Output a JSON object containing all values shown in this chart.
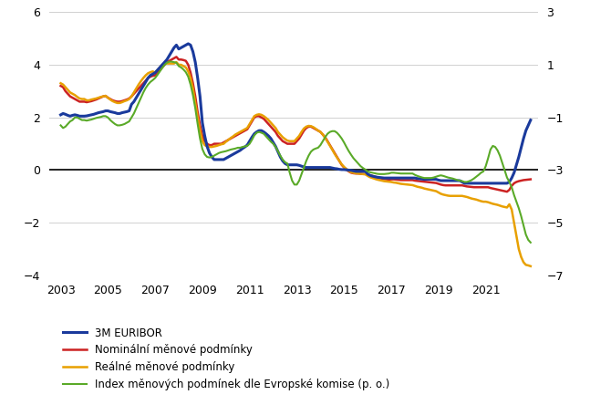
{
  "legend": [
    "3M EURIBOR",
    "Nominální měnové podmínky",
    "Reálné měnové podmínky",
    "Index měnových podmínek dle Evropské komise (p. o.)"
  ],
  "colors": [
    "#1a3a9c",
    "#cc2222",
    "#e8a000",
    "#5aaa28"
  ],
  "linewidths": [
    2.2,
    1.8,
    1.8,
    1.5
  ],
  "ylim_left": [
    -4,
    6
  ],
  "ylim_right": [
    -7,
    3
  ],
  "yticks_left": [
    -4,
    -2,
    0,
    2,
    4,
    6
  ],
  "yticks_right": [
    -7,
    -5,
    -3,
    -1,
    1,
    3
  ],
  "xticks": [
    2003,
    2005,
    2007,
    2009,
    2011,
    2013,
    2015,
    2017,
    2019,
    2021
  ],
  "xlim": [
    2002.5,
    2023.2
  ],
  "years": [
    2003.0,
    2003.1,
    2003.2,
    2003.3,
    2003.4,
    2003.5,
    2003.6,
    2003.7,
    2003.8,
    2003.9,
    2004.0,
    2004.1,
    2004.2,
    2004.3,
    2004.4,
    2004.5,
    2004.6,
    2004.7,
    2004.8,
    2004.9,
    2005.0,
    2005.1,
    2005.2,
    2005.3,
    2005.4,
    2005.5,
    2005.6,
    2005.7,
    2005.8,
    2005.9,
    2006.0,
    2006.1,
    2006.2,
    2006.3,
    2006.4,
    2006.5,
    2006.6,
    2006.7,
    2006.8,
    2006.9,
    2007.0,
    2007.1,
    2007.2,
    2007.3,
    2007.4,
    2007.5,
    2007.6,
    2007.7,
    2007.8,
    2007.9,
    2008.0,
    2008.1,
    2008.2,
    2008.3,
    2008.4,
    2008.5,
    2008.6,
    2008.7,
    2008.8,
    2008.9,
    2009.0,
    2009.1,
    2009.2,
    2009.3,
    2009.4,
    2009.5,
    2009.6,
    2009.7,
    2009.8,
    2009.9,
    2010.0,
    2010.1,
    2010.2,
    2010.3,
    2010.4,
    2010.5,
    2010.6,
    2010.7,
    2010.8,
    2010.9,
    2011.0,
    2011.1,
    2011.2,
    2011.3,
    2011.4,
    2011.5,
    2011.6,
    2011.7,
    2011.8,
    2011.9,
    2012.0,
    2012.1,
    2012.2,
    2012.3,
    2012.4,
    2012.5,
    2012.6,
    2012.7,
    2012.8,
    2012.9,
    2013.0,
    2013.1,
    2013.2,
    2013.3,
    2013.4,
    2013.5,
    2013.6,
    2013.7,
    2013.8,
    2013.9,
    2014.0,
    2014.1,
    2014.2,
    2014.3,
    2014.4,
    2014.5,
    2014.6,
    2014.7,
    2014.8,
    2014.9,
    2015.0,
    2015.1,
    2015.2,
    2015.3,
    2015.4,
    2015.5,
    2015.6,
    2015.7,
    2015.8,
    2015.9,
    2016.0,
    2016.1,
    2016.2,
    2016.3,
    2016.4,
    2016.5,
    2016.6,
    2016.7,
    2016.8,
    2016.9,
    2017.0,
    2017.1,
    2017.2,
    2017.3,
    2017.4,
    2017.5,
    2017.6,
    2017.7,
    2017.8,
    2017.9,
    2018.0,
    2018.1,
    2018.2,
    2018.3,
    2018.4,
    2018.5,
    2018.6,
    2018.7,
    2018.8,
    2018.9,
    2019.0,
    2019.1,
    2019.2,
    2019.3,
    2019.4,
    2019.5,
    2019.6,
    2019.7,
    2019.8,
    2019.9,
    2020.0,
    2020.1,
    2020.2,
    2020.3,
    2020.4,
    2020.5,
    2020.6,
    2020.7,
    2020.8,
    2020.9,
    2021.0,
    2021.1,
    2021.2,
    2021.3,
    2021.4,
    2021.5,
    2021.6,
    2021.7,
    2021.8,
    2021.9,
    2022.0,
    2022.1,
    2022.2,
    2022.3,
    2022.4,
    2022.5,
    2022.6,
    2022.7,
    2022.8,
    2022.9
  ],
  "euribor": [
    2.1,
    2.15,
    2.12,
    2.08,
    2.05,
    2.08,
    2.1,
    2.08,
    2.05,
    2.05,
    2.05,
    2.06,
    2.08,
    2.1,
    2.12,
    2.15,
    2.18,
    2.2,
    2.22,
    2.25,
    2.25,
    2.22,
    2.2,
    2.18,
    2.15,
    2.15,
    2.18,
    2.2,
    2.22,
    2.25,
    2.5,
    2.6,
    2.75,
    2.9,
    3.05,
    3.2,
    3.35,
    3.5,
    3.6,
    3.65,
    3.7,
    3.8,
    3.9,
    4.0,
    4.1,
    4.2,
    4.35,
    4.5,
    4.65,
    4.75,
    4.6,
    4.65,
    4.7,
    4.75,
    4.8,
    4.75,
    4.5,
    4.1,
    3.5,
    2.8,
    1.8,
    1.3,
    0.9,
    0.65,
    0.5,
    0.4,
    0.4,
    0.4,
    0.4,
    0.4,
    0.45,
    0.5,
    0.55,
    0.6,
    0.65,
    0.7,
    0.75,
    0.82,
    0.88,
    0.95,
    1.1,
    1.25,
    1.38,
    1.45,
    1.5,
    1.5,
    1.45,
    1.38,
    1.3,
    1.2,
    1.05,
    0.9,
    0.7,
    0.5,
    0.35,
    0.25,
    0.2,
    0.2,
    0.2,
    0.2,
    0.2,
    0.18,
    0.15,
    0.12,
    0.1,
    0.1,
    0.1,
    0.1,
    0.1,
    0.1,
    0.1,
    0.1,
    0.1,
    0.1,
    0.1,
    0.08,
    0.06,
    0.05,
    0.03,
    0.02,
    0.02,
    0.01,
    0.0,
    -0.01,
    -0.03,
    -0.05,
    -0.05,
    -0.05,
    -0.05,
    -0.05,
    -0.15,
    -0.2,
    -0.23,
    -0.25,
    -0.27,
    -0.28,
    -0.29,
    -0.3,
    -0.3,
    -0.3,
    -0.3,
    -0.3,
    -0.3,
    -0.3,
    -0.3,
    -0.3,
    -0.3,
    -0.3,
    -0.3,
    -0.3,
    -0.3,
    -0.32,
    -0.33,
    -0.34,
    -0.35,
    -0.35,
    -0.35,
    -0.35,
    -0.35,
    -0.35,
    -0.38,
    -0.4,
    -0.4,
    -0.4,
    -0.4,
    -0.4,
    -0.4,
    -0.4,
    -0.4,
    -0.4,
    -0.45,
    -0.5,
    -0.5,
    -0.5,
    -0.5,
    -0.5,
    -0.5,
    -0.5,
    -0.5,
    -0.5,
    -0.5,
    -0.5,
    -0.5,
    -0.5,
    -0.5,
    -0.5,
    -0.5,
    -0.5,
    -0.5,
    -0.5,
    -0.45,
    -0.3,
    -0.1,
    0.2,
    0.5,
    0.85,
    1.2,
    1.5,
    1.7,
    1.9
  ],
  "nominal": [
    3.2,
    3.15,
    3.0,
    2.9,
    2.8,
    2.75,
    2.7,
    2.65,
    2.6,
    2.6,
    2.6,
    2.58,
    2.6,
    2.62,
    2.65,
    2.68,
    2.72,
    2.76,
    2.8,
    2.82,
    2.75,
    2.7,
    2.65,
    2.62,
    2.6,
    2.6,
    2.62,
    2.65,
    2.68,
    2.72,
    2.8,
    2.9,
    3.0,
    3.1,
    3.2,
    3.3,
    3.4,
    3.5,
    3.55,
    3.58,
    3.6,
    3.7,
    3.8,
    3.9,
    4.0,
    4.1,
    4.15,
    4.2,
    4.25,
    4.3,
    4.2,
    4.2,
    4.18,
    4.15,
    4.0,
    3.7,
    3.3,
    2.8,
    2.2,
    1.7,
    1.3,
    1.1,
    1.0,
    0.95,
    0.95,
    1.0,
    1.0,
    1.0,
    1.0,
    1.05,
    1.1,
    1.15,
    1.2,
    1.25,
    1.3,
    1.35,
    1.4,
    1.45,
    1.5,
    1.55,
    1.7,
    1.85,
    2.0,
    2.05,
    2.05,
    2.0,
    1.95,
    1.85,
    1.75,
    1.65,
    1.55,
    1.45,
    1.3,
    1.2,
    1.1,
    1.05,
    1.0,
    1.0,
    1.0,
    1.0,
    1.1,
    1.2,
    1.35,
    1.5,
    1.6,
    1.65,
    1.65,
    1.6,
    1.55,
    1.5,
    1.45,
    1.35,
    1.25,
    1.1,
    0.95,
    0.8,
    0.65,
    0.5,
    0.35,
    0.2,
    0.1,
    0.02,
    -0.05,
    -0.1,
    -0.12,
    -0.13,
    -0.13,
    -0.14,
    -0.15,
    -0.15,
    -0.18,
    -0.2,
    -0.22,
    -0.25,
    -0.27,
    -0.3,
    -0.32,
    -0.34,
    -0.35,
    -0.36,
    -0.35,
    -0.35,
    -0.36,
    -0.37,
    -0.38,
    -0.38,
    -0.38,
    -0.38,
    -0.38,
    -0.38,
    -0.4,
    -0.41,
    -0.42,
    -0.43,
    -0.44,
    -0.45,
    -0.46,
    -0.47,
    -0.48,
    -0.49,
    -0.52,
    -0.55,
    -0.57,
    -0.58,
    -0.58,
    -0.58,
    -0.58,
    -0.58,
    -0.58,
    -0.58,
    -0.58,
    -0.6,
    -0.62,
    -0.63,
    -0.64,
    -0.65,
    -0.65,
    -0.65,
    -0.65,
    -0.65,
    -0.65,
    -0.65,
    -0.68,
    -0.7,
    -0.72,
    -0.74,
    -0.76,
    -0.78,
    -0.8,
    -0.82,
    -0.75,
    -0.6,
    -0.5,
    -0.45,
    -0.42,
    -0.4,
    -0.38,
    -0.37,
    -0.36,
    -0.35
  ],
  "real": [
    3.3,
    3.25,
    3.15,
    3.05,
    2.95,
    2.9,
    2.85,
    2.78,
    2.72,
    2.7,
    2.7,
    2.65,
    2.65,
    2.68,
    2.7,
    2.72,
    2.75,
    2.78,
    2.8,
    2.82,
    2.75,
    2.68,
    2.62,
    2.58,
    2.55,
    2.55,
    2.58,
    2.62,
    2.65,
    2.7,
    2.8,
    2.95,
    3.1,
    3.25,
    3.38,
    3.5,
    3.6,
    3.68,
    3.72,
    3.75,
    3.7,
    3.8,
    3.9,
    4.0,
    4.05,
    4.05,
    4.05,
    4.05,
    4.05,
    4.1,
    4.0,
    4.0,
    3.95,
    3.9,
    3.75,
    3.5,
    3.1,
    2.55,
    2.0,
    1.5,
    1.1,
    0.95,
    0.9,
    0.88,
    0.88,
    0.9,
    0.92,
    0.95,
    0.98,
    1.0,
    1.08,
    1.15,
    1.22,
    1.28,
    1.35,
    1.4,
    1.45,
    1.5,
    1.55,
    1.6,
    1.75,
    1.9,
    2.05,
    2.1,
    2.12,
    2.1,
    2.05,
    1.98,
    1.9,
    1.8,
    1.7,
    1.6,
    1.45,
    1.35,
    1.25,
    1.18,
    1.12,
    1.1,
    1.1,
    1.1,
    1.2,
    1.3,
    1.45,
    1.58,
    1.65,
    1.68,
    1.67,
    1.63,
    1.57,
    1.5,
    1.45,
    1.35,
    1.22,
    1.08,
    0.93,
    0.78,
    0.62,
    0.48,
    0.35,
    0.22,
    0.12,
    0.04,
    -0.03,
    -0.08,
    -0.1,
    -0.12,
    -0.13,
    -0.14,
    -0.15,
    -0.16,
    -0.22,
    -0.27,
    -0.3,
    -0.33,
    -0.36,
    -0.38,
    -0.4,
    -0.42,
    -0.43,
    -0.44,
    -0.45,
    -0.47,
    -0.48,
    -0.5,
    -0.52,
    -0.53,
    -0.54,
    -0.55,
    -0.56,
    -0.57,
    -0.6,
    -0.63,
    -0.65,
    -0.67,
    -0.7,
    -0.72,
    -0.74,
    -0.76,
    -0.78,
    -0.8,
    -0.85,
    -0.9,
    -0.93,
    -0.95,
    -0.97,
    -0.98,
    -0.98,
    -0.98,
    -0.98,
    -0.98,
    -0.98,
    -1.0,
    -1.02,
    -1.05,
    -1.08,
    -1.1,
    -1.12,
    -1.15,
    -1.18,
    -1.2,
    -1.2,
    -1.22,
    -1.25,
    -1.28,
    -1.3,
    -1.32,
    -1.35,
    -1.38,
    -1.4,
    -1.42,
    -1.3,
    -1.5,
    -2.0,
    -2.5,
    -3.0,
    -3.3,
    -3.5,
    -3.6,
    -3.62,
    -3.65
  ],
  "mci": [
    1.7,
    1.6,
    1.65,
    1.75,
    1.85,
    1.9,
    2.0,
    2.0,
    1.95,
    1.9,
    1.9,
    1.88,
    1.9,
    1.92,
    1.95,
    1.98,
    2.0,
    2.02,
    2.05,
    2.05,
    2.0,
    1.9,
    1.82,
    1.75,
    1.7,
    1.7,
    1.72,
    1.75,
    1.8,
    1.85,
    2.0,
    2.15,
    2.35,
    2.55,
    2.75,
    2.95,
    3.12,
    3.25,
    3.35,
    3.42,
    3.5,
    3.62,
    3.75,
    3.88,
    4.0,
    4.08,
    4.12,
    4.12,
    4.1,
    4.08,
    3.95,
    3.9,
    3.82,
    3.72,
    3.55,
    3.25,
    2.85,
    2.35,
    1.75,
    1.2,
    0.8,
    0.6,
    0.5,
    0.48,
    0.5,
    0.55,
    0.6,
    0.65,
    0.68,
    0.7,
    0.72,
    0.75,
    0.78,
    0.8,
    0.82,
    0.85,
    0.85,
    0.88,
    0.9,
    0.92,
    1.0,
    1.15,
    1.32,
    1.42,
    1.45,
    1.42,
    1.38,
    1.28,
    1.18,
    1.08,
    1.0,
    0.88,
    0.72,
    0.55,
    0.4,
    0.3,
    0.25,
    -0.1,
    -0.4,
    -0.55,
    -0.55,
    -0.4,
    -0.15,
    0.1,
    0.35,
    0.55,
    0.7,
    0.78,
    0.82,
    0.85,
    0.95,
    1.1,
    1.25,
    1.38,
    1.45,
    1.48,
    1.48,
    1.42,
    1.32,
    1.2,
    1.05,
    0.88,
    0.72,
    0.58,
    0.45,
    0.35,
    0.25,
    0.15,
    0.08,
    0.02,
    -0.05,
    -0.08,
    -0.1,
    -0.12,
    -0.14,
    -0.15,
    -0.15,
    -0.15,
    -0.14,
    -0.13,
    -0.1,
    -0.1,
    -0.11,
    -0.12,
    -0.13,
    -0.13,
    -0.13,
    -0.13,
    -0.13,
    -0.13,
    -0.18,
    -0.22,
    -0.25,
    -0.28,
    -0.3,
    -0.3,
    -0.3,
    -0.3,
    -0.28,
    -0.25,
    -0.22,
    -0.2,
    -0.22,
    -0.25,
    -0.28,
    -0.3,
    -0.32,
    -0.35,
    -0.38,
    -0.4,
    -0.42,
    -0.45,
    -0.45,
    -0.42,
    -0.38,
    -0.32,
    -0.25,
    -0.18,
    -0.1,
    -0.05,
    0.15,
    0.45,
    0.78,
    0.92,
    0.88,
    0.75,
    0.55,
    0.28,
    0.0,
    -0.28,
    -0.45,
    -0.65,
    -0.95,
    -1.2,
    -1.45,
    -1.75,
    -2.1,
    -2.45,
    -2.65,
    -2.75
  ]
}
